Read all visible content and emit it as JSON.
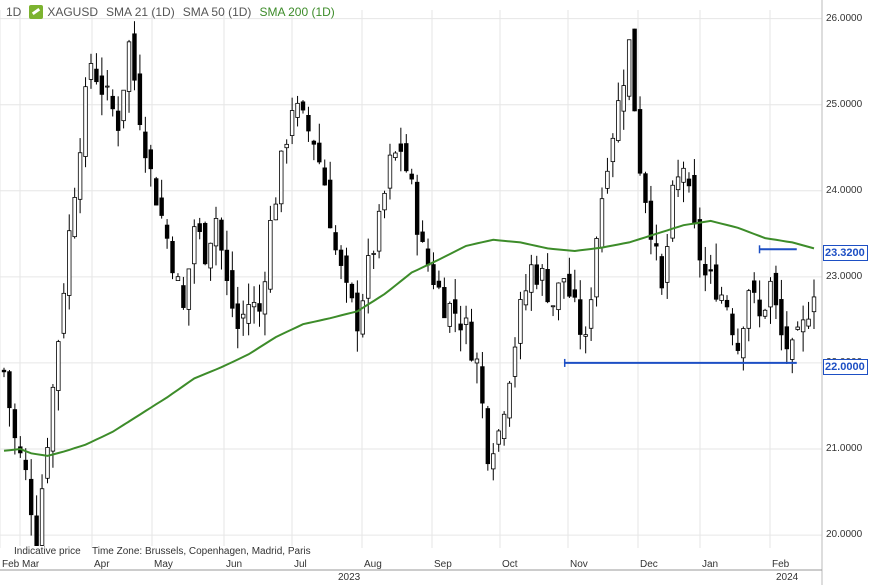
{
  "header": {
    "timeframe": "1D",
    "symbol": "XAGUSD",
    "sma21": "SMA 21 (1D)",
    "sma50": "SMA 50 (1D)",
    "sma200": "SMA 200 (1D)"
  },
  "footer": {
    "indicative": "Indicative price",
    "timezone": "Time Zone: Brussels, Copenhagen, Madrid, Paris",
    "year1": "2023",
    "year2": "2024"
  },
  "colors": {
    "candle": "#000000",
    "sma200": "#3d8c2a",
    "hline": "#1d4fc4",
    "grid": "#e6e6e6"
  },
  "badges": {
    "resistance": "23.3200",
    "support": "22.0000"
  },
  "chart_data": {
    "type": "candlestick",
    "symbol": "XAGUSD",
    "timeframe": "1D",
    "y_ticks": [
      "20.0000",
      "21.0000",
      "22.0000",
      "23.0000",
      "24.0000",
      "25.0000",
      "26.0000"
    ],
    "ylim": [
      19.85,
      26.1
    ],
    "x_ticks": [
      "Feb",
      "Mar",
      "Apr",
      "May",
      "Jun",
      "Jul",
      "Aug",
      "Sep",
      "Oct",
      "Nov",
      "Dec",
      "Jan",
      "Feb"
    ],
    "series_note": "Daily close path (approx.) from Feb 2023 to Feb 2024",
    "close_path": [
      [
        0,
        21.9
      ],
      [
        2,
        21.1
      ],
      [
        4,
        20.7
      ],
      [
        6,
        20.0
      ],
      [
        9,
        21.7
      ],
      [
        12,
        23.5
      ],
      [
        14,
        24.6
      ],
      [
        16,
        25.5
      ],
      [
        18,
        25.2
      ],
      [
        21,
        24.8
      ],
      [
        23,
        25.7
      ],
      [
        25,
        24.9
      ],
      [
        27,
        24.2
      ],
      [
        29,
        23.7
      ],
      [
        31,
        23.2
      ],
      [
        33,
        22.6
      ],
      [
        35,
        23.6
      ],
      [
        37,
        23.3
      ],
      [
        39,
        23.7
      ],
      [
        41,
        22.9
      ],
      [
        43,
        22.4
      ],
      [
        45,
        22.7
      ],
      [
        47,
        22.6
      ],
      [
        49,
        23.6
      ],
      [
        51,
        24.3
      ],
      [
        53,
        25.0
      ],
      [
        55,
        24.8
      ],
      [
        57,
        24.6
      ],
      [
        59,
        24.1
      ],
      [
        61,
        23.3
      ],
      [
        63,
        22.8
      ],
      [
        65,
        22.5
      ],
      [
        67,
        23.1
      ],
      [
        69,
        23.6
      ],
      [
        71,
        24.3
      ],
      [
        73,
        24.5
      ],
      [
        75,
        24.0
      ],
      [
        77,
        23.3
      ],
      [
        79,
        23.0
      ],
      [
        81,
        22.7
      ],
      [
        83,
        22.6
      ],
      [
        85,
        22.4
      ],
      [
        87,
        22.0
      ],
      [
        89,
        21.0
      ],
      [
        91,
        21.2
      ],
      [
        93,
        21.9
      ],
      [
        95,
        22.6
      ],
      [
        97,
        23.1
      ],
      [
        99,
        23.0
      ],
      [
        101,
        22.7
      ],
      [
        103,
        23.0
      ],
      [
        105,
        22.6
      ],
      [
        107,
        22.2
      ],
      [
        109,
        23.5
      ],
      [
        111,
        24.4
      ],
      [
        113,
        25.0
      ],
      [
        115,
        25.7
      ],
      [
        117,
        24.3
      ],
      [
        119,
        23.6
      ],
      [
        121,
        22.8
      ],
      [
        123,
        23.9
      ],
      [
        125,
        24.3
      ],
      [
        127,
        23.5
      ],
      [
        129,
        23.0
      ],
      [
        131,
        22.9
      ],
      [
        133,
        22.7
      ],
      [
        135,
        22.2
      ],
      [
        137,
        22.9
      ],
      [
        139,
        22.5
      ],
      [
        141,
        22.9
      ],
      [
        143,
        22.3
      ],
      [
        145,
        22.1
      ],
      [
        147,
        22.4
      ],
      [
        149,
        22.9
      ]
    ],
    "sma200_path": [
      [
        0,
        20.98
      ],
      [
        3,
        21.0
      ],
      [
        5,
        20.95
      ],
      [
        8,
        20.92
      ],
      [
        11,
        20.97
      ],
      [
        15,
        21.05
      ],
      [
        20,
        21.2
      ],
      [
        25,
        21.4
      ],
      [
        30,
        21.6
      ],
      [
        35,
        21.82
      ],
      [
        40,
        21.95
      ],
      [
        45,
        22.1
      ],
      [
        50,
        22.3
      ],
      [
        55,
        22.45
      ],
      [
        60,
        22.52
      ],
      [
        65,
        22.6
      ],
      [
        70,
        22.8
      ],
      [
        75,
        23.05
      ],
      [
        80,
        23.2
      ],
      [
        85,
        23.36
      ],
      [
        90,
        23.43
      ],
      [
        95,
        23.4
      ],
      [
        100,
        23.33
      ],
      [
        105,
        23.3
      ],
      [
        110,
        23.34
      ],
      [
        115,
        23.4
      ],
      [
        120,
        23.5
      ],
      [
        125,
        23.6
      ],
      [
        130,
        23.65
      ],
      [
        135,
        23.57
      ],
      [
        140,
        23.45
      ],
      [
        145,
        23.4
      ],
      [
        149,
        23.33
      ]
    ],
    "horizontal_lines": [
      {
        "label": "23.3200",
        "value": 23.32,
        "from": 0.924,
        "to": 0.962
      },
      {
        "label": "22.0000",
        "value": 22.0,
        "from": 0.687,
        "to": 0.962
      }
    ]
  }
}
